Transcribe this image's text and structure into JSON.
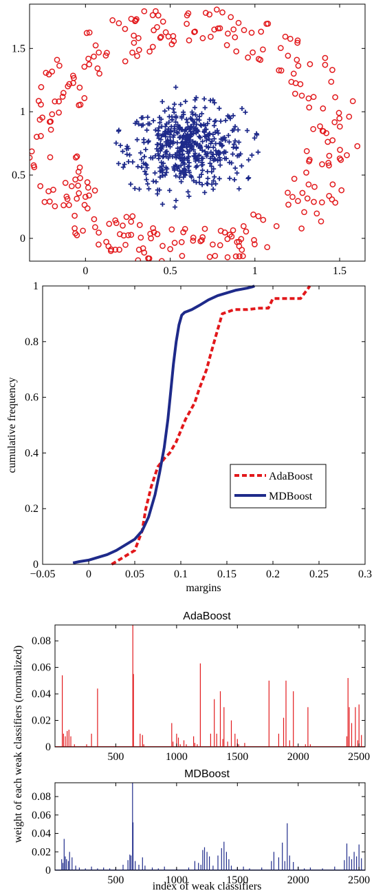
{
  "chart_data": [
    {
      "type": "scatter",
      "title": "",
      "xlabel": "",
      "ylabel": "",
      "xlim": [
        -0.33,
        1.65
      ],
      "ylim": [
        -0.18,
        1.85
      ],
      "xticks": [
        0,
        0.5,
        1,
        1.5
      ],
      "xtick_labels": [
        "0",
        "0.5",
        "1",
        "1.5"
      ],
      "yticks": [
        0,
        0.5,
        1,
        1.5
      ],
      "ytick_labels": [
        "0",
        "0.5",
        "1",
        "1.5"
      ],
      "series": [
        {
          "marker": "circle",
          "color": "#e2181b",
          "distribution": "ring",
          "center": [
            0.62,
            0.8
          ],
          "radius_range": [
            0.72,
            1.05
          ],
          "count": 300
        },
        {
          "marker": "plus",
          "color": "#1e2a8a",
          "distribution": "blob",
          "center": [
            0.6,
            0.72
          ],
          "spread": [
            0.17,
            0.16
          ],
          "count": 500
        }
      ]
    },
    {
      "type": "line",
      "title": "",
      "xlabel": "margins",
      "ylabel": "cumulative frequency",
      "xlim": [
        -0.05,
        0.3
      ],
      "ylim": [
        0,
        1
      ],
      "xticks": [
        -0.05,
        0,
        0.05,
        0.1,
        0.15,
        0.2,
        0.25,
        0.3
      ],
      "xtick_labels": [
        "−0.05",
        "0",
        "0.05",
        "0.1",
        "0.15",
        "0.2",
        "0.25",
        "0.3"
      ],
      "yticks": [
        0,
        0.2,
        0.4,
        0.6,
        0.8,
        1
      ],
      "ytick_labels": [
        "0",
        "0.2",
        "0.4",
        "0.6",
        "0.8",
        "1"
      ],
      "legend_position": "center-right",
      "series": [
        {
          "name": "AdaBoost",
          "color": "#e2181b",
          "style": "dashed",
          "x": [
            0.025,
            0.035,
            0.05,
            0.058,
            0.062,
            0.068,
            0.075,
            0.082,
            0.088,
            0.095,
            0.105,
            0.115,
            0.12,
            0.128,
            0.132,
            0.138,
            0.145,
            0.158,
            0.172,
            0.185,
            0.195,
            0.2,
            0.21,
            0.23,
            0.238,
            0.24
          ],
          "y": [
            0.0,
            0.02,
            0.05,
            0.12,
            0.2,
            0.28,
            0.35,
            0.38,
            0.4,
            0.44,
            0.52,
            0.58,
            0.63,
            0.7,
            0.75,
            0.82,
            0.9,
            0.915,
            0.915,
            0.92,
            0.92,
            0.955,
            0.955,
            0.955,
            0.99,
            1.0
          ]
        },
        {
          "name": "MDBoost",
          "color": "#1e2a8a",
          "style": "solid",
          "x": [
            -0.017,
            -0.01,
            0.0,
            0.01,
            0.02,
            0.03,
            0.04,
            0.05,
            0.058,
            0.065,
            0.072,
            0.077,
            0.082,
            0.086,
            0.089,
            0.092,
            0.095,
            0.098,
            0.101,
            0.104,
            0.108,
            0.112,
            0.12,
            0.13,
            0.14,
            0.15,
            0.16,
            0.172,
            0.178,
            0.18
          ],
          "y": [
            0.005,
            0.01,
            0.015,
            0.025,
            0.035,
            0.05,
            0.07,
            0.09,
            0.12,
            0.17,
            0.25,
            0.33,
            0.42,
            0.52,
            0.62,
            0.72,
            0.8,
            0.86,
            0.895,
            0.905,
            0.91,
            0.915,
            0.93,
            0.95,
            0.965,
            0.975,
            0.985,
            0.992,
            0.997,
            1.0
          ]
        }
      ]
    },
    {
      "type": "bar",
      "title": "AdaBoost",
      "xlabel": "",
      "ylabel": "",
      "shared_ylabel": "weight of each weak classifiers (normalized)",
      "xlim": [
        0,
        2550
      ],
      "ylim": [
        0,
        0.092
      ],
      "xticks": [
        500,
        1000,
        1500,
        2000,
        2500
      ],
      "xtick_labels": [
        "500",
        "1000",
        "1500",
        "2000",
        "2500"
      ],
      "yticks": [
        0,
        0.02,
        0.04,
        0.06,
        0.08
      ],
      "ytick_labels": [
        "0",
        "0.02",
        "0.04",
        "0.06",
        "0.08"
      ],
      "color": "#e2181b",
      "x": [
        60,
        70,
        85,
        100,
        115,
        130,
        160,
        260,
        300,
        350,
        640,
        645,
        700,
        720,
        730,
        960,
        970,
        1000,
        1015,
        1030,
        1060,
        1080,
        1140,
        1150,
        1170,
        1195,
        1280,
        1310,
        1330,
        1360,
        1380,
        1390,
        1420,
        1450,
        1480,
        1500,
        1510,
        1560,
        1760,
        1840,
        1880,
        1900,
        1930,
        1960,
        2060,
        2080,
        2100,
        2400,
        2410,
        2420,
        2440,
        2470,
        2490,
        2500,
        2520
      ],
      "values": [
        0.054,
        0.01,
        0.008,
        0.012,
        0.013,
        0.008,
        0.002,
        0.002,
        0.01,
        0.044,
        0.092,
        0.055,
        0.01,
        0.009,
        0.002,
        0.018,
        0.004,
        0.01,
        0.007,
        0.002,
        0.005,
        0.002,
        0.008,
        0.003,
        0.002,
        0.063,
        0.01,
        0.036,
        0.01,
        0.042,
        0.006,
        0.03,
        0.004,
        0.02,
        0.01,
        0.006,
        0.002,
        0.003,
        0.05,
        0.01,
        0.022,
        0.05,
        0.005,
        0.042,
        0.002,
        0.03,
        0.002,
        0.008,
        0.052,
        0.03,
        0.018,
        0.03,
        0.005,
        0.032,
        0.009
      ]
    },
    {
      "type": "bar",
      "title": "MDBoost",
      "xlabel": "index of weak classifiers",
      "ylabel": "",
      "shared_ylabel": "weight of each weak classifiers (normalized)",
      "xlim": [
        0,
        2550
      ],
      "ylim": [
        0,
        0.095
      ],
      "xticks": [
        500,
        1000,
        1500,
        2000,
        2500
      ],
      "xtick_labels": [
        "500",
        "1000",
        "1500",
        "2000",
        "2500"
      ],
      "yticks": [
        0,
        0.02,
        0.04,
        0.06,
        0.08
      ],
      "ytick_labels": [
        "0",
        "0.02",
        "0.04",
        "0.06",
        "0.08"
      ],
      "color": "#1e2a8a",
      "x": [
        55,
        65,
        75,
        85,
        95,
        110,
        120,
        140,
        170,
        200,
        250,
        300,
        350,
        400,
        450,
        500,
        560,
        600,
        615,
        625,
        638,
        642,
        660,
        690,
        720,
        740,
        800,
        850,
        900,
        1000,
        1100,
        1150,
        1180,
        1200,
        1215,
        1230,
        1250,
        1270,
        1300,
        1340,
        1370,
        1390,
        1410,
        1430,
        1450,
        1500,
        1550,
        1600,
        1700,
        1780,
        1800,
        1840,
        1870,
        1890,
        1910,
        1930,
        1960,
        2000,
        2050,
        2100,
        2200,
        2300,
        2380,
        2400,
        2420,
        2440,
        2460,
        2480,
        2500,
        2520
      ],
      "values": [
        0.012,
        0.008,
        0.034,
        0.015,
        0.012,
        0.01,
        0.02,
        0.014,
        0.005,
        0.003,
        0.002,
        0.004,
        0.002,
        0.003,
        0.002,
        0.003,
        0.006,
        0.011,
        0.017,
        0.016,
        0.095,
        0.052,
        0.01,
        0.006,
        0.014,
        0.005,
        0.003,
        0.002,
        0.004,
        0.002,
        0.003,
        0.01,
        0.008,
        0.006,
        0.022,
        0.025,
        0.02,
        0.015,
        0.005,
        0.016,
        0.024,
        0.031,
        0.02,
        0.012,
        0.005,
        0.003,
        0.004,
        0.002,
        0.003,
        0.01,
        0.02,
        0.014,
        0.03,
        0.01,
        0.051,
        0.016,
        0.009,
        0.004,
        0.002,
        0.003,
        0.002,
        0.004,
        0.011,
        0.029,
        0.015,
        0.012,
        0.02,
        0.015,
        0.028,
        0.013
      ]
    }
  ]
}
